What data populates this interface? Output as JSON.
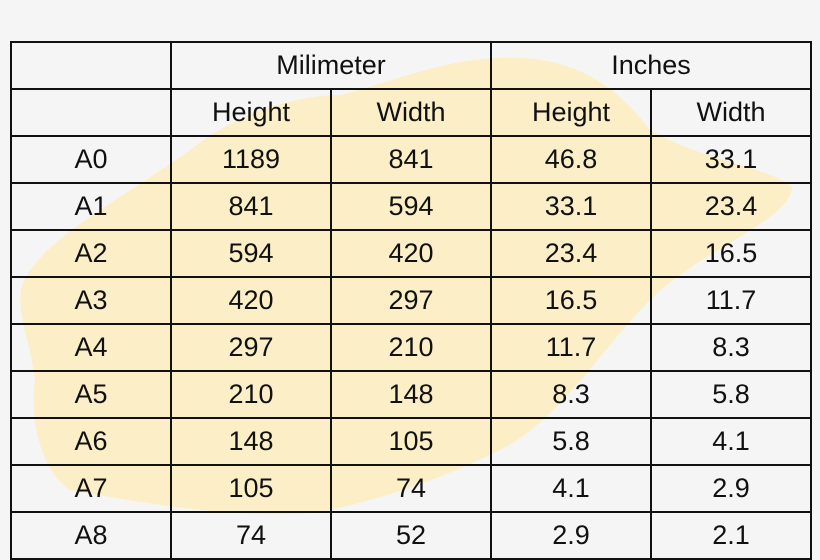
{
  "highlight_color": "#fcefc7",
  "header": {
    "group1": "Milimeter",
    "group2": "Inches",
    "sub": [
      "Height",
      "Width",
      "Height",
      "Width"
    ]
  },
  "rows": [
    {
      "size": "A0",
      "mm_h": "1189",
      "mm_w": "841",
      "in_h": "46.8",
      "in_w": "33.1"
    },
    {
      "size": "A1",
      "mm_h": "841",
      "mm_w": "594",
      "in_h": "33.1",
      "in_w": "23.4"
    },
    {
      "size": "A2",
      "mm_h": "594",
      "mm_w": "420",
      "in_h": "23.4",
      "in_w": "16.5"
    },
    {
      "size": "A3",
      "mm_h": "420",
      "mm_w": "297",
      "in_h": "16.5",
      "in_w": "11.7"
    },
    {
      "size": "A4",
      "mm_h": "297",
      "mm_w": "210",
      "in_h": "11.7",
      "in_w": "8.3"
    },
    {
      "size": "A5",
      "mm_h": "210",
      "mm_w": "148",
      "in_h": "8.3",
      "in_w": "5.8"
    },
    {
      "size": "A6",
      "mm_h": "148",
      "mm_w": "105",
      "in_h": "5.8",
      "in_w": "4.1"
    },
    {
      "size": "A7",
      "mm_h": "105",
      "mm_w": "74",
      "in_h": "4.1",
      "in_w": "2.9"
    },
    {
      "size": "A8",
      "mm_h": "74",
      "mm_w": "52",
      "in_h": "2.9",
      "in_w": "2.1"
    }
  ]
}
